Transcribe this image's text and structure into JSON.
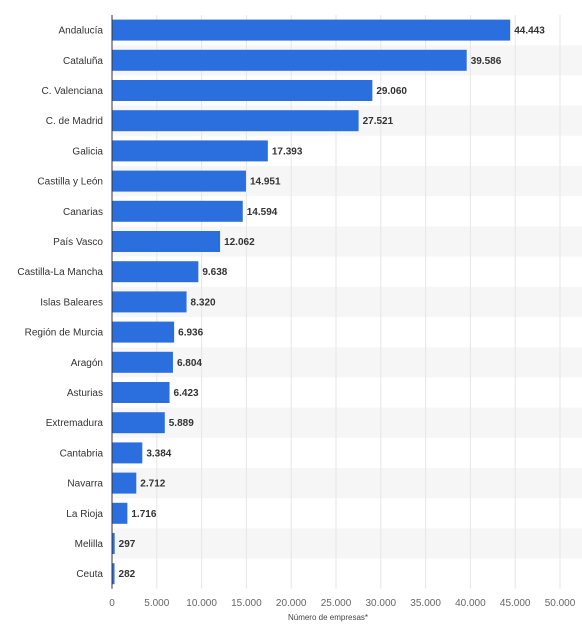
{
  "chart_data": {
    "type": "bar",
    "orientation": "horizontal",
    "categories": [
      "Andalucía",
      "Cataluña",
      "C. Valenciana",
      "C. de Madrid",
      "Galicia",
      "Castilla y León",
      "Canarias",
      "País Vasco",
      "Castilla-La Mancha",
      "Islas Baleares",
      "Región de Murcia",
      "Aragón",
      "Asturias",
      "Extremadura",
      "Cantabria",
      "Navarra",
      "La Rioja",
      "Melilla",
      "Ceuta"
    ],
    "values": [
      44443,
      39586,
      29060,
      27521,
      17393,
      14951,
      14594,
      12062,
      9638,
      8320,
      6936,
      6804,
      6423,
      5889,
      3384,
      2712,
      1716,
      297,
      282
    ],
    "value_labels": [
      "44.443",
      "39.586",
      "29.060",
      "27.521",
      "17.393",
      "14.951",
      "14.594",
      "12.062",
      "9.638",
      "8.320",
      "6.936",
      "6.804",
      "6.423",
      "5.889",
      "3.384",
      "2.712",
      "1.716",
      "297",
      "282"
    ],
    "xlim": [
      0,
      50000
    ],
    "x_ticks": [
      0,
      5000,
      10000,
      15000,
      20000,
      25000,
      30000,
      35000,
      40000,
      45000,
      50000
    ],
    "x_tick_labels": [
      "0",
      "5.000",
      "10.000",
      "15.000",
      "20.000",
      "25.000",
      "30.000",
      "35.000",
      "40.000",
      "45.000",
      "50.000"
    ],
    "xlabel": "Número de empresas*",
    "ylabel": "",
    "title": "",
    "grid": true,
    "colors": {
      "bar": "#2b6fdf",
      "stripe": "#f6f6f6",
      "grid": "#e6e6e6",
      "axis": "#333333"
    }
  }
}
